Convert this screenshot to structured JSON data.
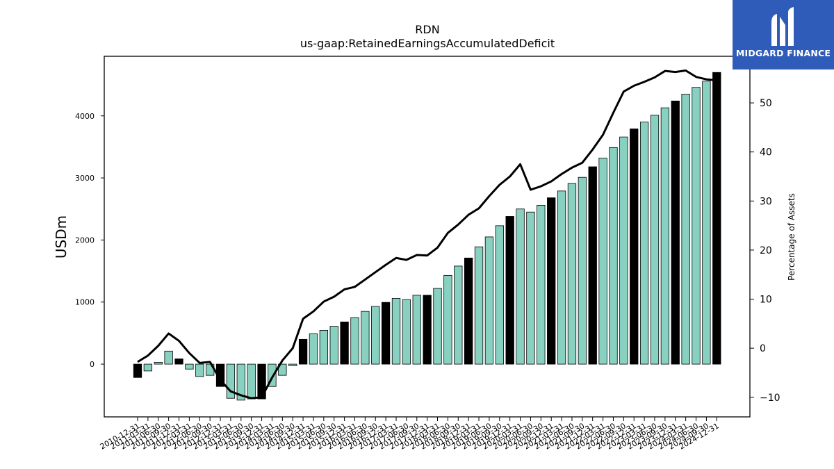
{
  "logo": {
    "text": "MIDGARD FINANCE",
    "icon": "midgard-logo-icon",
    "background": "#2e5cb8"
  },
  "chart_data": {
    "type": "bar",
    "title": "RDN",
    "subtitle": "us-gaap:RetainedEarningsAccumulatedDeficit",
    "ylabel": "USDm",
    "y2label": "Percentage of Assets",
    "ylim": [
      -850,
      4960
    ],
    "y2lim": [
      -14.0,
      59.5
    ],
    "yticks": [
      0,
      1000,
      2000,
      3000,
      4000
    ],
    "y2ticks": [
      -10,
      0,
      10,
      20,
      30,
      40,
      50
    ],
    "bar_color": "#88d1c1",
    "highlight_color": "#000000",
    "line_color": "#000000",
    "categories": [
      "2010-12-31",
      "2011-03-31",
      "2011-06-30",
      "2011-09-30",
      "2011-12-31",
      "2012-03-31",
      "2012-06-30",
      "2012-09-30",
      "2012-12-31",
      "2013-03-31",
      "2013-06-30",
      "2013-09-30",
      "2013-12-31",
      "2014-03-31",
      "2014-06-30",
      "2014-09-30",
      "2014-12-31",
      "2015-03-31",
      "2015-06-30",
      "2015-09-30",
      "2015-12-31",
      "2016-03-31",
      "2016-06-30",
      "2016-09-30",
      "2016-12-31",
      "2017-03-31",
      "2017-06-30",
      "2017-09-30",
      "2017-12-31",
      "2018-03-31",
      "2018-06-30",
      "2018-09-30",
      "2018-12-31",
      "2019-03-31",
      "2019-06-30",
      "2019-09-30",
      "2019-12-31",
      "2020-03-31",
      "2020-06-30",
      "2020-09-30",
      "2020-12-31",
      "2021-03-31",
      "2021-06-30",
      "2021-09-30",
      "2021-12-31",
      "2022-03-31",
      "2022-06-30",
      "2022-09-30",
      "2022-12-31",
      "2023-03-31",
      "2023-06-30",
      "2023-09-30",
      "2023-12-31",
      "2024-03-31",
      "2024-06-30",
      "2024-09-30",
      "2024-12-31"
    ],
    "series": [
      {
        "type": "bar",
        "axis": "left",
        "values": [
          -215,
          -110,
          30,
          210,
          85,
          -80,
          -200,
          -180,
          -360,
          -550,
          -580,
          -560,
          -560,
          -360,
          -180,
          -25,
          400,
          490,
          545,
          610,
          680,
          750,
          850,
          930,
          995,
          1060,
          1040,
          1110,
          1110,
          1220,
          1430,
          1580,
          1710,
          1890,
          2050,
          2230,
          2380,
          2500,
          2450,
          2560,
          2680,
          2790,
          2910,
          3010,
          3180,
          3320,
          3490,
          3660,
          3790,
          3900,
          4010,
          4130,
          4240,
          4350,
          4460,
          4560,
          4700
        ],
        "highlighted": [
          true,
          false,
          false,
          false,
          true,
          false,
          false,
          false,
          true,
          false,
          false,
          false,
          true,
          false,
          false,
          false,
          true,
          false,
          false,
          false,
          true,
          false,
          false,
          false,
          true,
          false,
          false,
          false,
          true,
          false,
          false,
          false,
          true,
          false,
          false,
          false,
          true,
          false,
          false,
          false,
          true,
          false,
          false,
          false,
          true,
          false,
          false,
          false,
          true,
          false,
          false,
          false,
          true,
          false,
          false,
          false,
          true
        ]
      },
      {
        "type": "line",
        "axis": "right",
        "values": [
          -2.8,
          -1.5,
          0.5,
          3.0,
          1.5,
          -1.0,
          -3.0,
          -2.8,
          -6.5,
          -8.8,
          -9.6,
          -10.2,
          -10.0,
          -6.0,
          -2.5,
          0.0,
          6.0,
          7.5,
          9.5,
          10.5,
          12.0,
          12.5,
          14.0,
          15.5,
          17.0,
          18.4,
          18.0,
          19.0,
          18.9,
          20.5,
          23.5,
          25.2,
          27.2,
          28.5,
          31.0,
          33.3,
          35.0,
          37.5,
          32.3,
          33.0,
          34.0,
          35.5,
          36.8,
          37.8,
          40.5,
          43.5,
          48.0,
          52.3,
          53.5,
          54.3,
          55.2,
          56.5,
          56.3,
          56.6,
          55.3,
          54.8,
          54.6
        ]
      }
    ]
  }
}
